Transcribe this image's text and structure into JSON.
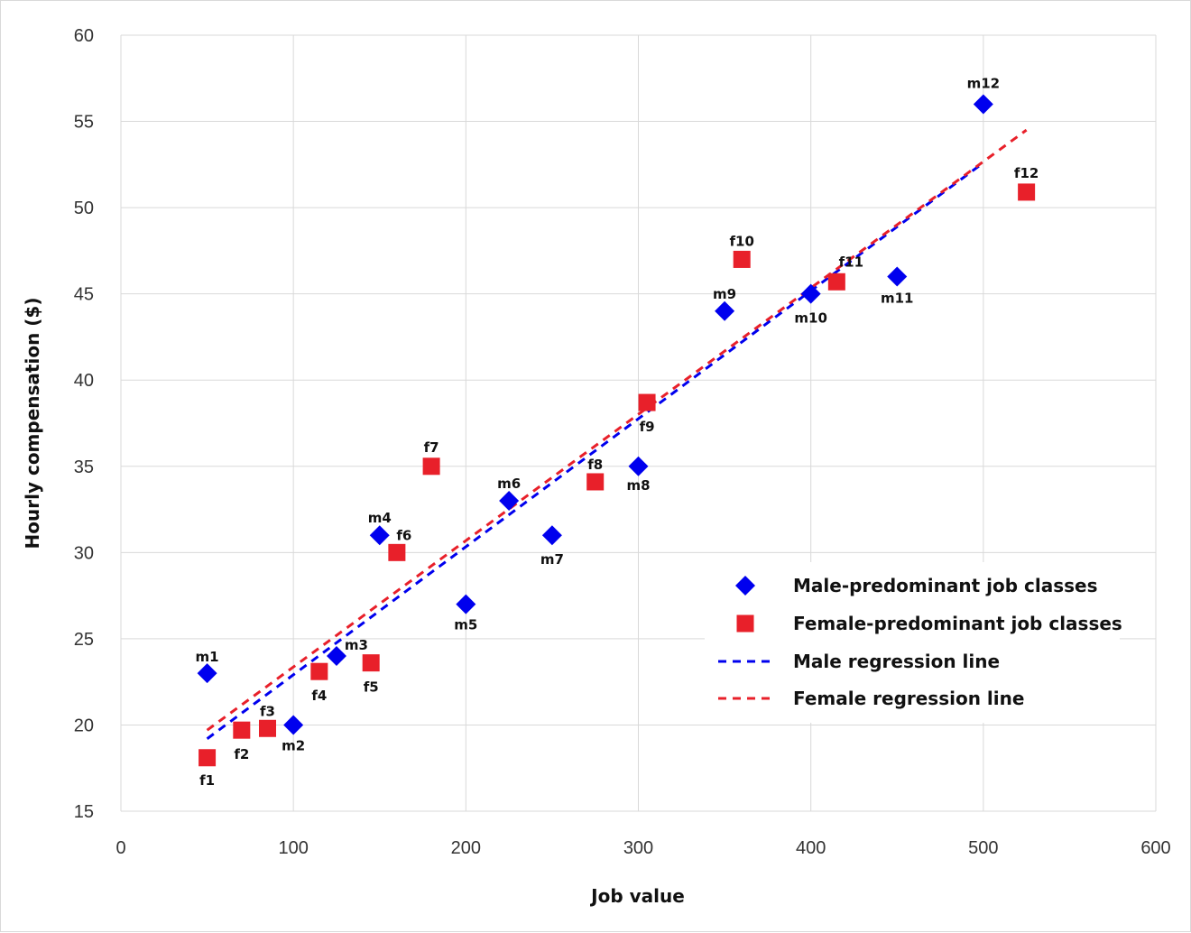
{
  "chart_data": {
    "type": "scatter",
    "title": "",
    "xlabel": "Job value",
    "ylabel": "Hourly compensation ($)",
    "xlim": [
      0,
      600
    ],
    "ylim": [
      15,
      60
    ],
    "x_ticks": [
      0,
      100,
      200,
      300,
      400,
      500,
      600
    ],
    "y_ticks": [
      15,
      20,
      25,
      30,
      35,
      40,
      45,
      50,
      55,
      60
    ],
    "grid": true,
    "legend_position": "right",
    "series": [
      {
        "name": "Male-predominant job classes",
        "marker": "diamond",
        "color": "#0000ee",
        "points": [
          {
            "label": "m1",
            "x": 50,
            "y": 23
          },
          {
            "label": "m2",
            "x": 100,
            "y": 20
          },
          {
            "label": "m3",
            "x": 125,
            "y": 24
          },
          {
            "label": "m4",
            "x": 150,
            "y": 31
          },
          {
            "label": "m5",
            "x": 200,
            "y": 27
          },
          {
            "label": "m6",
            "x": 225,
            "y": 33
          },
          {
            "label": "m7",
            "x": 250,
            "y": 31
          },
          {
            "label": "m8",
            "x": 300,
            "y": 35
          },
          {
            "label": "m9",
            "x": 350,
            "y": 44
          },
          {
            "label": "m10",
            "x": 400,
            "y": 45
          },
          {
            "label": "m11",
            "x": 450,
            "y": 46
          },
          {
            "label": "m12",
            "x": 500,
            "y": 56
          }
        ]
      },
      {
        "name": "Female-predominant job classes",
        "marker": "square",
        "color": "#e8202a",
        "points": [
          {
            "label": "f1",
            "x": 50,
            "y": 18.1
          },
          {
            "label": "f2",
            "x": 70,
            "y": 19.7
          },
          {
            "label": "f3",
            "x": 85,
            "y": 19.8
          },
          {
            "label": "f4",
            "x": 115,
            "y": 23.1
          },
          {
            "label": "f5",
            "x": 145,
            "y": 23.6
          },
          {
            "label": "f6",
            "x": 160,
            "y": 30
          },
          {
            "label": "f7",
            "x": 180,
            "y": 35
          },
          {
            "label": "f8",
            "x": 275,
            "y": 34.1
          },
          {
            "label": "f9",
            "x": 305,
            "y": 38.7
          },
          {
            "label": "f10",
            "x": 360,
            "y": 47
          },
          {
            "label": "f11",
            "x": 415,
            "y": 45.7
          },
          {
            "label": "f12",
            "x": 525,
            "y": 50.9
          }
        ]
      }
    ],
    "lines": [
      {
        "name": "Male regression line",
        "color": "#0000ee",
        "style": "dashed",
        "x": [
          50,
          500
        ],
        "y": [
          19.2,
          52.6
        ]
      },
      {
        "name": "Female regression line",
        "color": "#e8202a",
        "style": "dashed",
        "x": [
          50,
          525
        ],
        "y": [
          19.7,
          54.5
        ]
      }
    ]
  }
}
